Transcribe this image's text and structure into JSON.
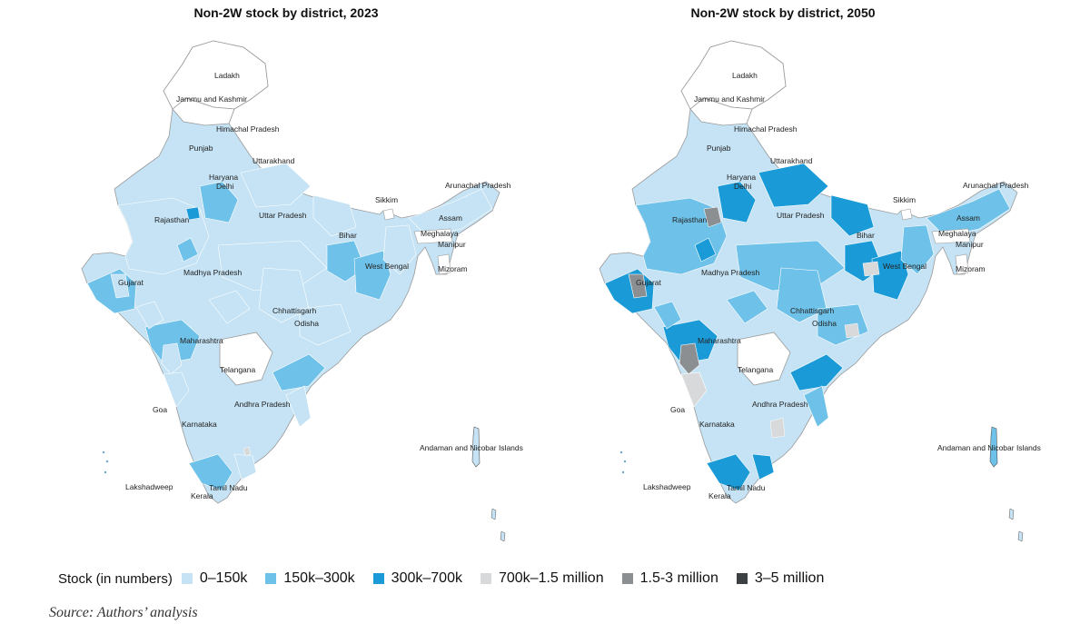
{
  "maps": [
    {
      "title": "Non-2W stock by district, 2023",
      "state_labels": [
        "Ladakh",
        "Jammu and Kashmir",
        "Himachal Pradesh",
        "Punjab",
        "Uttarakhand",
        "Haryana",
        "Delhi",
        "Rajasthan",
        "Uttar Pradesh",
        "Sikkim",
        "Arunachal Pradesh",
        "Assam",
        "Meghalaya",
        "Bihar",
        "Manipur",
        "Mizoram",
        "West Bengal",
        "Madhya Pradesh",
        "Gujarat",
        "Chhattisgarh",
        "Odisha",
        "Maharashtra",
        "Telangana",
        "Andhra Pradesh",
        "Goa",
        "Karnataka",
        "Andaman and Nicobar Islands",
        "Lakshadweep",
        "Tamil Nadu",
        "Kerala"
      ]
    },
    {
      "title": "Non-2W stock by district, 2050",
      "state_labels": [
        "Ladakh",
        "Jammu and Kashmir",
        "Himachal Pradesh",
        "Punjab",
        "Uttarakhand",
        "Haryana",
        "Delhi",
        "Rajasthan",
        "Uttar Pradesh",
        "Sikkim",
        "Arunachal Pradesh",
        "Assam",
        "Meghalaya",
        "Bihar",
        "Manipur",
        "Mizoram",
        "West Bengal",
        "Madhya Pradesh",
        "Gujarat",
        "Chhattisgarh",
        "Odisha",
        "Maharashtra",
        "Telangana",
        "Andhra Pradesh",
        "Goa",
        "Karnataka",
        "Andaman and Nicobar Islands",
        "Lakshadweep",
        "Tamil Nadu",
        "Kerala"
      ]
    }
  ],
  "legend": {
    "title": "Stock (in numbers)",
    "items": [
      {
        "label": "0–150k",
        "color": "#c5e3f4"
      },
      {
        "label": "150k–300k",
        "color": "#6ec1e8"
      },
      {
        "label": "300k–700k",
        "color": "#1a9bd7"
      },
      {
        "label": "700k–1.5 million",
        "color": "#d7d9db"
      },
      {
        "label": "1.5-3 million",
        "color": "#8c8f91"
      },
      {
        "label": "3–5 million",
        "color": "#3d4042"
      }
    ]
  },
  "source": "Source: Authors’ analysis"
}
